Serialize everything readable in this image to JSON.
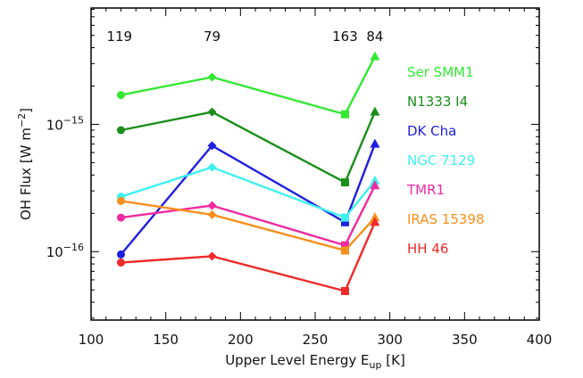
{
  "chart_data": {
    "type": "line",
    "xlabel": "Upper Level Energy E",
    "xlabel_sub": "up",
    "xlabel_unit": "[K]",
    "ylabel": "OH Flux [W m",
    "ylabel_sup": "−2",
    "ylabel_end": "]",
    "y_scale": "log",
    "xlim": [
      100,
      400
    ],
    "ylim": [
      2.9e-17,
      8.2e-15
    ],
    "x_ticks": [
      100,
      150,
      200,
      250,
      300,
      350,
      400
    ],
    "y_tick_labels": [
      {
        "base": "10",
        "exp": "−15",
        "value": 1e-15
      },
      {
        "base": "10",
        "exp": "−16",
        "value": 1e-16
      }
    ],
    "top_labels": [
      {
        "x": 119,
        "text": "119"
      },
      {
        "x": 181,
        "text": "79"
      },
      {
        "x": 270,
        "text": "163"
      },
      {
        "x": 290,
        "text": "84"
      }
    ],
    "x": [
      120,
      181,
      270,
      290
    ],
    "grid": false,
    "legend_position": "right",
    "series": [
      {
        "name": "Ser SMM1",
        "color": "#33e833",
        "values": [
          1.7e-15,
          2.35e-15,
          1.2e-15,
          3.4e-15
        ]
      },
      {
        "name": "N1333 I4",
        "color": "#1a8f1a",
        "values": [
          9e-16,
          1.25e-15,
          3.5e-16,
          1.25e-15
        ]
      },
      {
        "name": "DK Cha",
        "color": "#1f1fe0",
        "values": [
          9.5e-17,
          6.8e-16,
          1.7e-16,
          7e-16
        ]
      },
      {
        "name": "NGC 7129",
        "color": "#3ff0f0",
        "values": [
          2.7e-16,
          4.6e-16,
          1.85e-16,
          3.6e-16
        ]
      },
      {
        "name": "TMR1",
        "color": "#f02aa0",
        "values": [
          1.85e-16,
          2.3e-16,
          1.12e-16,
          3.3e-16
        ]
      },
      {
        "name": "IRAS 15398",
        "color": "#f5901c",
        "values": [
          2.5e-16,
          1.95e-16,
          1.02e-16,
          1.85e-16
        ]
      },
      {
        "name": "HH 46",
        "color": "#f02a2a",
        "values": [
          8.2e-17,
          9.2e-17,
          4.9e-17,
          1.7e-16
        ]
      }
    ]
  }
}
